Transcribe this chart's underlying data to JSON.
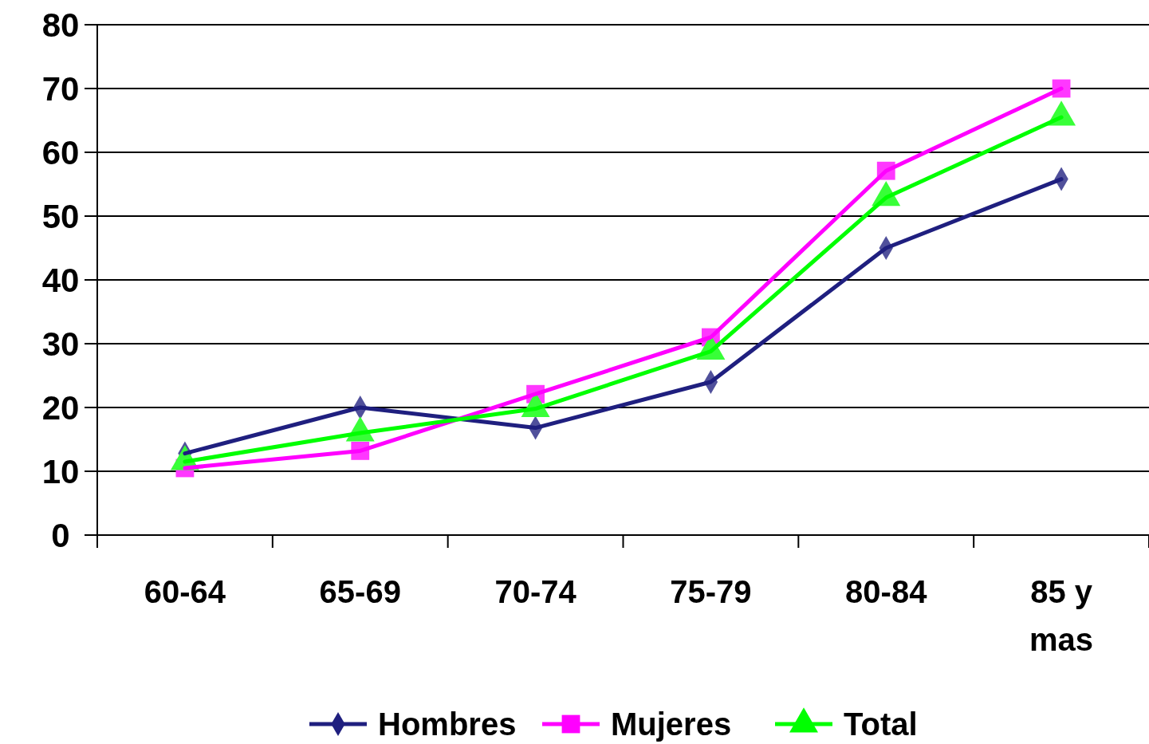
{
  "chart_data": {
    "type": "line",
    "categories": [
      "60-64",
      "65-69",
      "70-74",
      "75-79",
      "80-84",
      "85 y mas"
    ],
    "series": [
      {
        "name": "Hombres",
        "color": "#1f1f7f",
        "marker": "diamond",
        "values": [
          12.8,
          20,
          16.8,
          24,
          45,
          55.8
        ]
      },
      {
        "name": "Mujeres",
        "color": "#ff00ff",
        "marker": "square",
        "values": [
          10.5,
          13.2,
          22.1,
          31,
          57.1,
          70
        ]
      },
      {
        "name": "Total",
        "color": "#00ff00",
        "marker": "triangle",
        "values": [
          11.5,
          16,
          19.8,
          28.8,
          52.9,
          65.5
        ]
      }
    ],
    "ylim": [
      0,
      80
    ],
    "yticks": [
      0,
      10,
      20,
      30,
      40,
      50,
      60,
      70,
      80
    ],
    "grid": "y",
    "legend": "bottom",
    "line_style": "solid"
  }
}
